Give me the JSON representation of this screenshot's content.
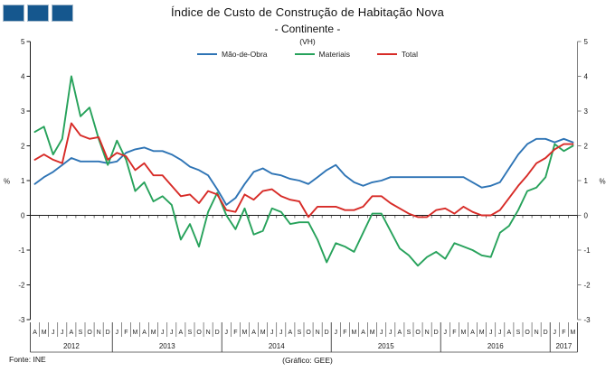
{
  "logo": {
    "square_count": 3,
    "color": "#15578e"
  },
  "title": {
    "line1": "Índice de Custo de Construção de Habitação Nova",
    "line2": "- Continente -",
    "line3": "(VH)"
  },
  "footer": {
    "source": "Fonte: INE",
    "credit": "(Gráfico: GEE)"
  },
  "chart_data": {
    "type": "line",
    "title": "Índice de Custo de Construção de Habitação Nova - Continente - (VH)",
    "y_unit": "%",
    "ylim": [
      -3,
      5
    ],
    "yticks": [
      5,
      4,
      3,
      2,
      1,
      0,
      -1,
      -2,
      -3
    ],
    "grid": "off",
    "legend_position": "top-center",
    "x_months": [
      "A",
      "M",
      "J",
      "J",
      "A",
      "S",
      "O",
      "N",
      "D",
      "J",
      "F",
      "M",
      "A",
      "M",
      "J",
      "J",
      "A",
      "S",
      "O",
      "N",
      "D",
      "J",
      "F",
      "M",
      "A",
      "M",
      "J",
      "J",
      "A",
      "S",
      "O",
      "N",
      "D",
      "J",
      "F",
      "M",
      "A",
      "M",
      "J",
      "J",
      "A",
      "S",
      "O",
      "N",
      "D",
      "J",
      "F",
      "M",
      "A",
      "M",
      "J",
      "J",
      "A",
      "S",
      "O",
      "N",
      "D",
      "J",
      "F",
      "M"
    ],
    "year_groups": [
      {
        "label": "2012",
        "months": 9
      },
      {
        "label": "2013",
        "months": 12
      },
      {
        "label": "2014",
        "months": 12
      },
      {
        "label": "2015",
        "months": 12
      },
      {
        "label": "2016",
        "months": 12
      },
      {
        "label": "2017",
        "months": 3
      }
    ],
    "series": [
      {
        "name": "Mão-de-Obra",
        "color": "#2e74b5",
        "values": [
          0.9,
          1.1,
          1.25,
          1.45,
          1.65,
          1.55,
          1.55,
          1.55,
          1.5,
          1.55,
          1.8,
          1.9,
          1.95,
          1.85,
          1.85,
          1.75,
          1.6,
          1.4,
          1.3,
          1.15,
          0.75,
          0.3,
          0.5,
          0.9,
          1.25,
          1.35,
          1.2,
          1.15,
          1.05,
          1.0,
          0.9,
          1.1,
          1.3,
          1.45,
          1.15,
          0.95,
          0.85,
          0.95,
          1.0,
          1.1,
          1.1,
          1.1,
          1.1,
          1.1,
          1.1,
          1.1,
          1.1,
          1.1,
          0.95,
          0.8,
          0.85,
          0.95,
          1.35,
          1.75,
          2.05,
          2.2,
          2.2,
          2.1,
          2.2,
          2.1
        ]
      },
      {
        "name": "Materiais",
        "color": "#27a25b",
        "values": [
          2.4,
          2.55,
          1.75,
          2.2,
          4.0,
          2.85,
          3.1,
          2.2,
          1.45,
          2.15,
          1.6,
          0.7,
          0.95,
          0.4,
          0.55,
          0.3,
          -0.7,
          -0.25,
          -0.9,
          0.1,
          0.65,
          0.0,
          -0.4,
          0.2,
          -0.55,
          -0.45,
          0.2,
          0.1,
          -0.25,
          -0.2,
          -0.2,
          -0.7,
          -1.35,
          -0.8,
          -0.9,
          -1.05,
          -0.5,
          0.05,
          0.05,
          -0.45,
          -0.95,
          -1.15,
          -1.45,
          -1.2,
          -1.05,
          -1.25,
          -0.8,
          -0.9,
          -1.0,
          -1.15,
          -1.2,
          -0.5,
          -0.3,
          0.15,
          0.7,
          0.8,
          1.1,
          2.05,
          1.85,
          2.0
        ]
      },
      {
        "name": "Total",
        "color": "#d72b27",
        "values": [
          1.6,
          1.75,
          1.6,
          1.5,
          2.65,
          2.3,
          2.2,
          2.25,
          1.6,
          1.8,
          1.7,
          1.3,
          1.5,
          1.15,
          1.15,
          0.85,
          0.55,
          0.6,
          0.35,
          0.7,
          0.6,
          0.15,
          0.1,
          0.6,
          0.45,
          0.7,
          0.75,
          0.55,
          0.45,
          0.4,
          -0.05,
          0.25,
          0.25,
          0.25,
          0.15,
          0.15,
          0.25,
          0.55,
          0.55,
          0.35,
          0.2,
          0.05,
          -0.05,
          -0.05,
          0.15,
          0.2,
          0.05,
          0.25,
          0.1,
          0.0,
          0.0,
          0.15,
          0.5,
          0.85,
          1.15,
          1.5,
          1.65,
          1.9,
          2.05,
          2.05
        ]
      }
    ]
  }
}
